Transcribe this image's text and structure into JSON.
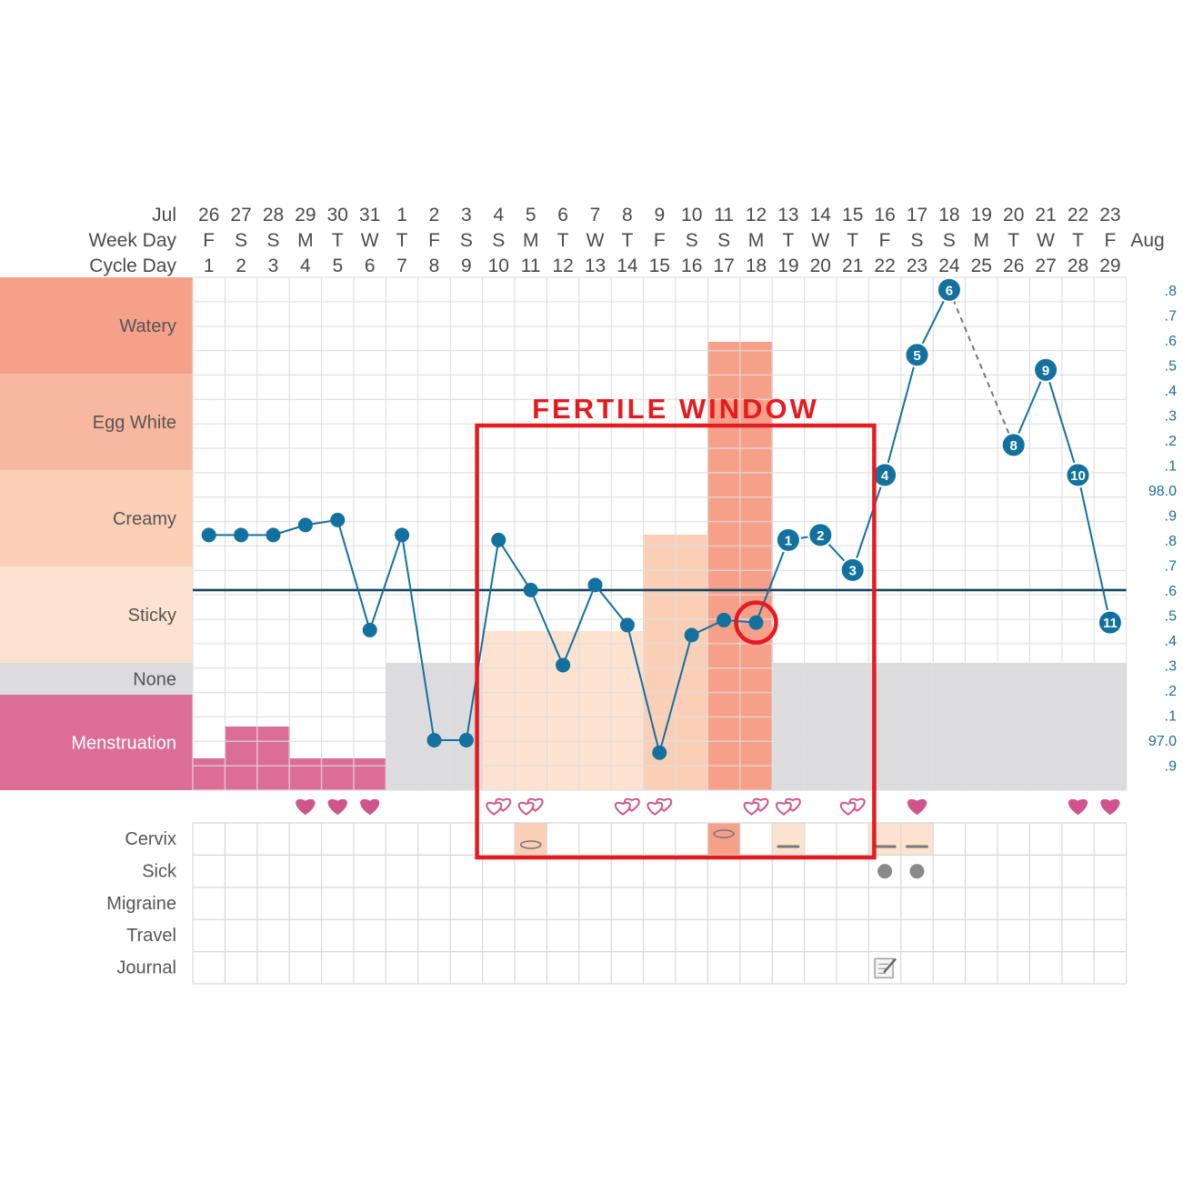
{
  "chart_data": {
    "type": "line",
    "title": "",
    "header_row_labels": {
      "month": "Jul",
      "week_day": "Week Day",
      "cycle_day": "Cycle Day"
    },
    "end_month_label": "Aug",
    "dates": [
      26,
      27,
      28,
      29,
      30,
      31,
      1,
      2,
      3,
      4,
      5,
      6,
      7,
      8,
      9,
      10,
      11,
      12,
      13,
      14,
      15,
      16,
      17,
      18,
      19,
      20,
      21,
      22,
      23
    ],
    "week_days": [
      "F",
      "S",
      "S",
      "M",
      "T",
      "W",
      "T",
      "F",
      "S",
      "S",
      "M",
      "T",
      "W",
      "T",
      "F",
      "S",
      "S",
      "M",
      "T",
      "W",
      "T",
      "F",
      "S",
      "S",
      "M",
      "T",
      "W",
      "T",
      "F"
    ],
    "cycle_days": [
      1,
      2,
      3,
      4,
      5,
      6,
      7,
      8,
      9,
      10,
      11,
      12,
      13,
      14,
      15,
      16,
      17,
      18,
      19,
      20,
      21,
      22,
      23,
      24,
      25,
      26,
      27,
      28,
      29
    ],
    "mucus_categories": [
      "Watery",
      "Egg White",
      "Creamy",
      "Sticky",
      "None",
      "Menstruation"
    ],
    "mucus_colors": {
      "Watery": "#f6a08a",
      "Egg White": "#f8b89f",
      "Creamy": "#fbcfb6",
      "Sticky": "#fde2cf",
      "None": "#dcdcde",
      "Menstruation": "#dc6e96"
    },
    "mucus_by_day": [
      "Menstruation",
      "Menstruation",
      "Menstruation",
      "Menstruation",
      "Menstruation",
      "Menstruation",
      "None",
      "None",
      "None",
      "Sticky",
      "Sticky",
      "Sticky",
      "Sticky",
      "Sticky",
      "Creamy",
      "Creamy",
      "Watery",
      "Watery",
      "None",
      "None",
      "None",
      "None",
      "None",
      "None",
      "None",
      "None",
      "None",
      "None",
      "None"
    ],
    "menstruation_flow": [
      1,
      2,
      2,
      1,
      1,
      1,
      0,
      0,
      0,
      0,
      0,
      0,
      0,
      0,
      0,
      0,
      0,
      0,
      0,
      0,
      0,
      0,
      0,
      0,
      0,
      0,
      0,
      0,
      0
    ],
    "temp_axis": {
      "min": 96.8,
      "max": 98.85,
      "ticks": [
        ".8",
        ".7",
        ".6",
        ".5",
        ".4",
        ".3",
        ".2",
        ".1",
        "98.0",
        ".9",
        ".8",
        ".7",
        ".6",
        ".5",
        ".4",
        ".3",
        ".2",
        ".1",
        "97.0",
        ".9"
      ],
      "tick_values": [
        98.8,
        98.7,
        98.6,
        98.5,
        98.4,
        98.3,
        98.2,
        98.1,
        98.0,
        97.9,
        97.8,
        97.7,
        97.6,
        97.5,
        97.4,
        97.3,
        97.2,
        97.1,
        97.0,
        96.9
      ]
    },
    "temperatures": [
      97.82,
      97.82,
      97.82,
      97.86,
      97.88,
      97.44,
      97.82,
      97.0,
      97.0,
      97.8,
      97.6,
      97.3,
      97.62,
      97.46,
      96.95,
      97.42,
      97.48,
      97.47,
      97.8,
      97.82,
      97.68,
      98.06,
      98.54,
      98.8,
      null,
      98.18,
      98.48,
      98.06,
      97.47
    ],
    "temp_connections": [
      [
        0,
        1,
        "solid"
      ],
      [
        1,
        2,
        "solid"
      ],
      [
        2,
        3,
        "solid"
      ],
      [
        3,
        4,
        "solid"
      ],
      [
        4,
        5,
        "solid"
      ],
      [
        5,
        6,
        "solid"
      ],
      [
        6,
        7,
        "solid"
      ],
      [
        7,
        8,
        "solid"
      ],
      [
        8,
        9,
        "solid"
      ],
      [
        9,
        10,
        "solid"
      ],
      [
        10,
        11,
        "solid"
      ],
      [
        11,
        12,
        "solid"
      ],
      [
        12,
        13,
        "solid"
      ],
      [
        13,
        14,
        "solid"
      ],
      [
        14,
        15,
        "solid"
      ],
      [
        15,
        16,
        "solid"
      ],
      [
        16,
        17,
        "solid"
      ],
      [
        17,
        18,
        "solid"
      ],
      [
        18,
        19,
        "solid"
      ],
      [
        19,
        20,
        "solid"
      ],
      [
        20,
        21,
        "solid"
      ],
      [
        21,
        22,
        "solid"
      ],
      [
        22,
        23,
        "solid"
      ],
      [
        23,
        25,
        "dashed"
      ],
      [
        25,
        26,
        "solid"
      ],
      [
        26,
        27,
        "solid"
      ],
      [
        27,
        28,
        "solid"
      ]
    ],
    "numbered_points": [
      null,
      null,
      null,
      null,
      null,
      null,
      null,
      null,
      null,
      null,
      null,
      null,
      null,
      null,
      null,
      null,
      null,
      null,
      "1",
      "2",
      "3",
      "4",
      "5",
      "6",
      null,
      "8",
      "9",
      "10",
      "11"
    ],
    "coverline": 97.6,
    "highlighted_day": 18,
    "intercourse": [
      {
        "day": 4,
        "type": "heart"
      },
      {
        "day": 5,
        "type": "heart"
      },
      {
        "day": 6,
        "type": "heart"
      },
      {
        "day": 10,
        "type": "double-heart"
      },
      {
        "day": 11,
        "type": "double-heart"
      },
      {
        "day": 14,
        "type": "double-heart"
      },
      {
        "day": 15,
        "type": "double-heart"
      },
      {
        "day": 18,
        "type": "double-heart"
      },
      {
        "day": 19,
        "type": "double-heart"
      },
      {
        "day": 21,
        "type": "double-heart"
      },
      {
        "day": 23,
        "type": "heart"
      },
      {
        "day": 28,
        "type": "heart"
      },
      {
        "day": 29,
        "type": "heart"
      }
    ],
    "symptom_rows": [
      "Cervix",
      "Sick",
      "Migraine",
      "Travel",
      "Journal"
    ],
    "cervix_entries": [
      {
        "day": 11,
        "shape": "oval",
        "color": "#fbcfb6"
      },
      {
        "day": 17,
        "shape": "oval",
        "color": "#f6a08a"
      },
      {
        "day": 19,
        "shape": "line",
        "color": "#fde2cf"
      },
      {
        "day": 22,
        "shape": "line",
        "color": "#fde2cf"
      },
      {
        "day": 23,
        "shape": "line",
        "color": "#fde2cf"
      }
    ],
    "sick_days": [
      22,
      23
    ],
    "journal_days": [
      22
    ],
    "fertile_window": {
      "label": "FERTILE WINDOW",
      "start_day": 10,
      "end_day": 21
    }
  }
}
